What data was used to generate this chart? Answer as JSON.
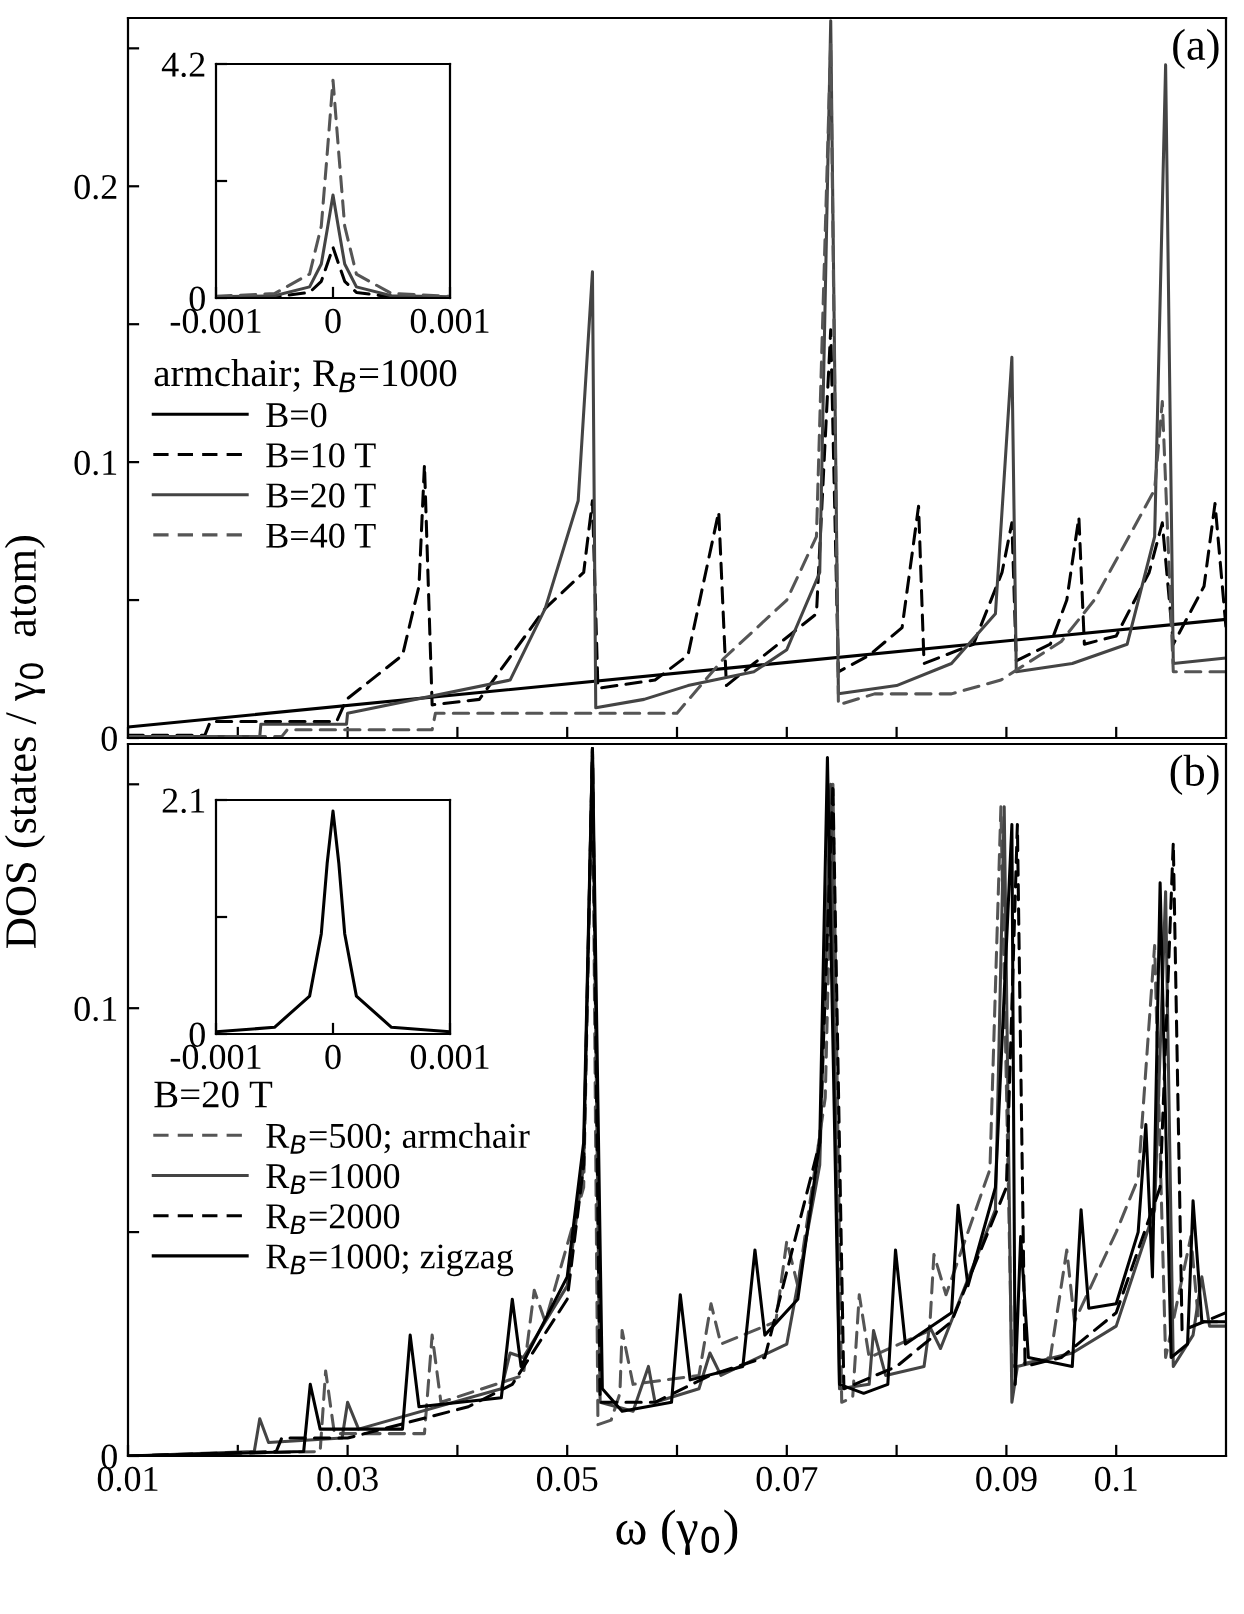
{
  "chart_data": [
    {
      "type": "line",
      "ylabel": "DOS (states / γ$_{0}$  atom)",
      "legend_title": "armchair; R$_{B}$=1000",
      "legend": "left",
      "tick_labels": "y",
      "annotations": [
        "(a)"
      ],
      "xlim": [
        0.01,
        0.11
      ],
      "ylim": [
        0,
        0.261
      ],
      "xticks": [
        {
          "value": 0.01,
          "label": null
        },
        {
          "value": 0.02,
          "label": null
        },
        {
          "value": 0.03,
          "label": null
        },
        {
          "value": 0.04,
          "label": null
        },
        {
          "value": 0.05,
          "label": null
        },
        {
          "value": 0.06,
          "label": null
        },
        {
          "value": 0.07,
          "label": null
        },
        {
          "value": 0.08,
          "label": null
        },
        {
          "value": 0.09,
          "label": null
        },
        {
          "value": 0.1,
          "label": null
        }
      ],
      "yticks": [
        0,
        {
          "value": 0.05,
          "label": null
        },
        0.1,
        {
          "value": 0.15,
          "label": null
        },
        0.2,
        {
          "value": 0.25,
          "label": null
        }
      ],
      "series": [
        {
          "name": "B=0",
          "color": "#000000",
          "line_style": "solid",
          "x": [
            0.01,
            0.11
          ],
          "values": [
            0.004,
            0.043
          ]
        },
        {
          "name": "B=10 T",
          "color": "#000000",
          "line_style": "dashed",
          "x": [
            0.01,
            0.017,
            0.0175,
            0.029,
            0.0299,
            0.035,
            0.0365,
            0.037,
            0.0377,
            0.042,
            0.048,
            0.0515,
            0.0523,
            0.0528,
            0.058,
            0.061,
            0.0638,
            0.0645,
            0.067,
            0.0727,
            0.074,
            0.0747,
            0.0775,
            0.0805,
            0.082,
            0.0825,
            0.087,
            0.0896,
            0.0905,
            0.0909,
            0.094,
            0.0955,
            0.0966,
            0.0971,
            0.1,
            0.103,
            0.1042,
            0.1052,
            0.108,
            0.109,
            0.11
          ],
          "values": [
            0.001,
            0.001,
            0.006,
            0.006,
            0.014,
            0.03,
            0.055,
            0.099,
            0.012,
            0.014,
            0.047,
            0.06,
            0.086,
            0.018,
            0.021,
            0.03,
            0.082,
            0.019,
            0.027,
            0.045,
            0.148,
            0.024,
            0.03,
            0.04,
            0.084,
            0.027,
            0.034,
            0.06,
            0.078,
            0.028,
            0.034,
            0.05,
            0.08,
            0.034,
            0.037,
            0.06,
            0.078,
            0.034,
            0.055,
            0.085,
            0.04
          ]
        },
        {
          "name": "B=20 T",
          "color": "#444444",
          "line_style": "solid",
          "x": [
            0.01,
            0.022,
            0.0221,
            0.0299,
            0.03,
            0.0448,
            0.048,
            0.051,
            0.0523,
            0.0526,
            0.057,
            0.061,
            0.067,
            0.07,
            0.073,
            0.074,
            0.0747,
            0.08,
            0.085,
            0.089,
            0.0905,
            0.0909,
            0.096,
            0.101,
            0.1035,
            0.1045,
            0.1052,
            0.11
          ],
          "values": [
            0.0005,
            0.0005,
            0.005,
            0.005,
            0.009,
            0.021,
            0.047,
            0.086,
            0.169,
            0.011,
            0.014,
            0.019,
            0.024,
            0.032,
            0.06,
            0.26,
            0.016,
            0.019,
            0.027,
            0.045,
            0.138,
            0.024,
            0.027,
            0.034,
            0.073,
            0.244,
            0.027,
            0.029
          ]
        },
        {
          "name": "B=40 T",
          "color": "#555555",
          "line_style": "dashed",
          "x": [
            0.01,
            0.024,
            0.0245,
            0.0377,
            0.038,
            0.06,
            0.0643,
            0.07,
            0.0727,
            0.074,
            0.0747,
            0.078,
            0.085,
            0.0895,
            0.095,
            0.098,
            0.1035,
            0.1042,
            0.1052,
            0.11
          ],
          "values": [
            0.0005,
            0.0005,
            0.003,
            0.003,
            0.009,
            0.009,
            0.029,
            0.05,
            0.073,
            0.252,
            0.012,
            0.016,
            0.016,
            0.021,
            0.035,
            0.05,
            0.09,
            0.122,
            0.024,
            0.024
          ]
        }
      ]
    },
    {
      "type": "line",
      "xlim": [
        -0.001,
        0.001
      ],
      "ylim": [
        0,
        4.2
      ],
      "xticks": [
        {
          "value": -0.001,
          "label": "-0.001"
        },
        0,
        0.001
      ],
      "yticks": [
        0,
        {
          "value": 2.1,
          "label": null
        },
        4.2
      ],
      "x": [
        -0.001,
        -0.0005,
        -0.0002,
        -0.0001,
        -5e-05,
        0,
        5e-05,
        0.0001,
        0.0002,
        0.0005,
        0.001
      ],
      "series": [
        {
          "color": "#000000",
          "line_style": "dashed",
          "values": [
            0.01,
            0.02,
            0.1,
            0.3,
            0.6,
            0.91,
            0.6,
            0.3,
            0.1,
            0.02,
            0.01
          ]
        },
        {
          "color": "#444444",
          "line_style": "solid",
          "values": [
            0.02,
            0.04,
            0.2,
            0.61,
            1.22,
            1.85,
            1.22,
            0.61,
            0.2,
            0.04,
            0.02
          ]
        },
        {
          "color": "#555555",
          "line_style": "dashed",
          "values": [
            0.03,
            0.08,
            0.43,
            1.29,
            2.58,
            3.91,
            2.58,
            1.29,
            0.43,
            0.08,
            0.03
          ]
        }
      ]
    },
    {
      "type": "line",
      "xlabel": "ω (γ$_{0}$)",
      "legend_title": "B=20 T",
      "legend": "left",
      "annotations": [
        "(b)"
      ],
      "xlim": [
        0.01,
        0.11
      ],
      "ylim": [
        0,
        0.159
      ],
      "xticks": [
        {
          "value": 0.01,
          "label": "0.01"
        },
        {
          "value": 0.02,
          "label": null
        },
        {
          "value": 0.03,
          "label": "0.03"
        },
        {
          "value": 0.04,
          "label": null
        },
        {
          "value": 0.05,
          "label": "0.05"
        },
        {
          "value": 0.06,
          "label": null
        },
        {
          "value": 0.07,
          "label": "0.07"
        },
        {
          "value": 0.08,
          "label": null
        },
        {
          "value": 0.09,
          "label": "0.09"
        },
        {
          "value": 0.1,
          "label": "0.1"
        }
      ],
      "yticks": [
        0,
        {
          "value": 0.05,
          "label": null
        },
        0.1,
        {
          "value": 0.15,
          "label": null
        }
      ],
      "series": [
        {
          "name": "R$_{B}$=500; armchair",
          "color": "#555555",
          "line_style": "dashed",
          "x": [
            0.01,
            0.0275,
            0.028,
            0.0288,
            0.037,
            0.0377,
            0.0385,
            0.046,
            0.047,
            0.048,
            0.0515,
            0.0523,
            0.0528,
            0.054,
            0.0548,
            0.055,
            0.056,
            0.062,
            0.0631,
            0.064,
            0.069,
            0.07,
            0.071,
            0.0735,
            0.0742,
            0.075,
            0.076,
            0.0766,
            0.0775,
            0.083,
            0.0834,
            0.0845,
            0.0885,
            0.0895,
            0.0905,
            0.094,
            0.0955,
            0.0962,
            0.1,
            0.102,
            0.1035,
            0.1045,
            0.1068,
            0.1075,
            0.11
          ],
          "values": [
            0,
            0.001,
            0.019,
            0.005,
            0.005,
            0.027,
            0.012,
            0.018,
            0.037,
            0.03,
            0.06,
            0.158,
            0.007,
            0.008,
            0.014,
            0.028,
            0.016,
            0.018,
            0.034,
            0.025,
            0.03,
            0.048,
            0.038,
            0.08,
            0.15,
            0.012,
            0.013,
            0.036,
            0.022,
            0.028,
            0.045,
            0.036,
            0.064,
            0.145,
            0.02,
            0.022,
            0.046,
            0.03,
            0.05,
            0.062,
            0.114,
            0.022,
            0.049,
            0.03,
            0.03
          ]
        },
        {
          "name": "R$_{B}$=1000",
          "color": "#444444",
          "line_style": "solid",
          "x": [
            0.01,
            0.0215,
            0.022,
            0.0228,
            0.0295,
            0.03,
            0.031,
            0.044,
            0.0448,
            0.046,
            0.05,
            0.0515,
            0.0523,
            0.053,
            0.056,
            0.0574,
            0.058,
            0.062,
            0.063,
            0.064,
            0.07,
            0.073,
            0.074,
            0.0748,
            0.0775,
            0.0779,
            0.079,
            0.0825,
            0.083,
            0.084,
            0.089,
            0.0898,
            0.0905,
            0.091,
            0.096,
            0.1,
            0.1035,
            0.1045,
            0.1052,
            0.107,
            0.1078,
            0.1085,
            0.11
          ],
          "values": [
            0,
            0.001,
            0.0083,
            0.003,
            0.004,
            0.012,
            0.006,
            0.015,
            0.023,
            0.022,
            0.038,
            0.065,
            0.158,
            0.012,
            0.01,
            0.02,
            0.012,
            0.015,
            0.023,
            0.018,
            0.025,
            0.065,
            0.15,
            0.015,
            0.016,
            0.028,
            0.018,
            0.02,
            0.029,
            0.024,
            0.055,
            0.145,
            0.012,
            0.02,
            0.023,
            0.029,
            0.055,
            0.126,
            0.02,
            0.027,
            0.04,
            0.029,
            0.029
          ]
        },
        {
          "name": "R$_{B}$=2000",
          "color": "#000000",
          "line_style": "dashed",
          "x": [
            0.01,
            0.0235,
            0.024,
            0.03,
            0.041,
            0.045,
            0.05,
            0.0515,
            0.0523,
            0.053,
            0.058,
            0.063,
            0.068,
            0.073,
            0.0742,
            0.0752,
            0.08,
            0.085,
            0.09,
            0.091,
            0.0917,
            0.095,
            0.1,
            0.104,
            0.1052,
            0.106,
            0.11
          ],
          "values": [
            0,
            0.001,
            0.004,
            0.004,
            0.011,
            0.016,
            0.035,
            0.065,
            0.158,
            0.012,
            0.012,
            0.018,
            0.022,
            0.07,
            0.15,
            0.015,
            0.02,
            0.03,
            0.06,
            0.141,
            0.02,
            0.022,
            0.032,
            0.06,
            0.137,
            0.028,
            0.032
          ]
        },
        {
          "name": "R$_{B}$=1000; zigzag",
          "color": "#000000",
          "line_style": "solid",
          "x": [
            0.01,
            0.026,
            0.0266,
            0.0275,
            0.035,
            0.0357,
            0.0365,
            0.044,
            0.045,
            0.0458,
            0.05,
            0.0515,
            0.0523,
            0.0532,
            0.055,
            0.0595,
            0.0603,
            0.0612,
            0.066,
            0.0671,
            0.068,
            0.071,
            0.073,
            0.0737,
            0.0748,
            0.077,
            0.0792,
            0.0799,
            0.0808,
            0.085,
            0.0856,
            0.0865,
            0.089,
            0.0905,
            0.0908,
            0.0913,
            0.092,
            0.096,
            0.0968,
            0.0975,
            0.1,
            0.102,
            0.1027,
            0.1033,
            0.104,
            0.105,
            0.1065,
            0.107,
            0.1078,
            0.11
          ],
          "values": [
            0,
            0.001,
            0.016,
            0.006,
            0.006,
            0.027,
            0.011,
            0.013,
            0.035,
            0.02,
            0.04,
            0.07,
            0.158,
            0.015,
            0.01,
            0.012,
            0.036,
            0.017,
            0.02,
            0.046,
            0.027,
            0.035,
            0.07,
            0.156,
            0.016,
            0.014,
            0.016,
            0.046,
            0.025,
            0.032,
            0.056,
            0.038,
            0.06,
            0.141,
            0.016,
            0.049,
            0.022,
            0.02,
            0.055,
            0.033,
            0.034,
            0.05,
            0.074,
            0.04,
            0.128,
            0.022,
            0.025,
            0.057,
            0.03,
            0.03
          ]
        }
      ]
    },
    {
      "type": "line",
      "xlim": [
        -0.001,
        0.001
      ],
      "ylim": [
        0,
        2.1
      ],
      "xticks": [
        {
          "value": -0.001,
          "label": "-0.001"
        },
        0,
        0.001
      ],
      "yticks": [
        0,
        {
          "value": 1.05,
          "label": null
        },
        2.1
      ],
      "x": [
        -0.001,
        -0.0005,
        -0.0002,
        -0.0001,
        -5e-05,
        0,
        5e-05,
        0.0001,
        0.0002,
        0.0005,
        0.001
      ],
      "series": [
        {
          "color": "#000000",
          "line_style": "solid",
          "values": [
            0.02,
            0.06,
            0.34,
            0.9,
            1.53,
            2.0,
            1.53,
            0.9,
            0.34,
            0.06,
            0.02
          ]
        }
      ]
    }
  ]
}
